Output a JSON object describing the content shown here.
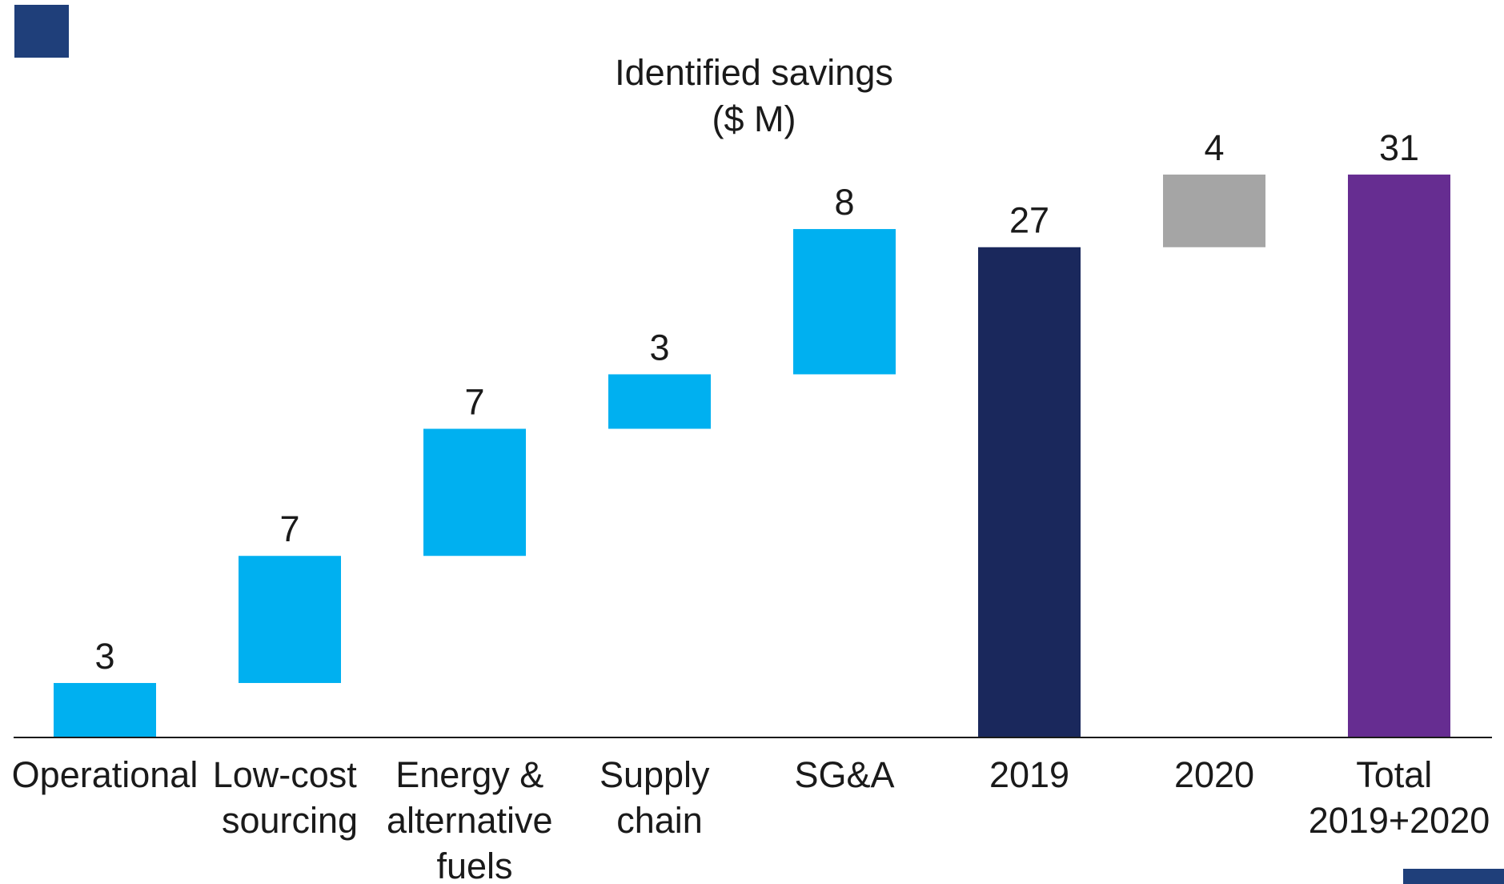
{
  "chart_data": {
    "type": "waterfall",
    "title": "Identified savings",
    "subtitle": "($ M)",
    "categories": [
      "Operational",
      "Low-cost sourcing",
      "Energy & alternative fuels",
      "Supply chain",
      "SG&A",
      "2019",
      "2020",
      "Total 2019+2020"
    ],
    "values": [
      3,
      7,
      7,
      3,
      8,
      27,
      4,
      31
    ],
    "bar_kinds": [
      "step",
      "step",
      "step",
      "step",
      "step",
      "total",
      "step",
      "total"
    ],
    "colors": [
      "#00b0f0",
      "#00b0f0",
      "#00b0f0",
      "#00b0f0",
      "#00b0f0",
      "#1a285c",
      "#a5a5a5",
      "#662d91"
    ],
    "ylim": [
      0,
      34
    ]
  }
}
